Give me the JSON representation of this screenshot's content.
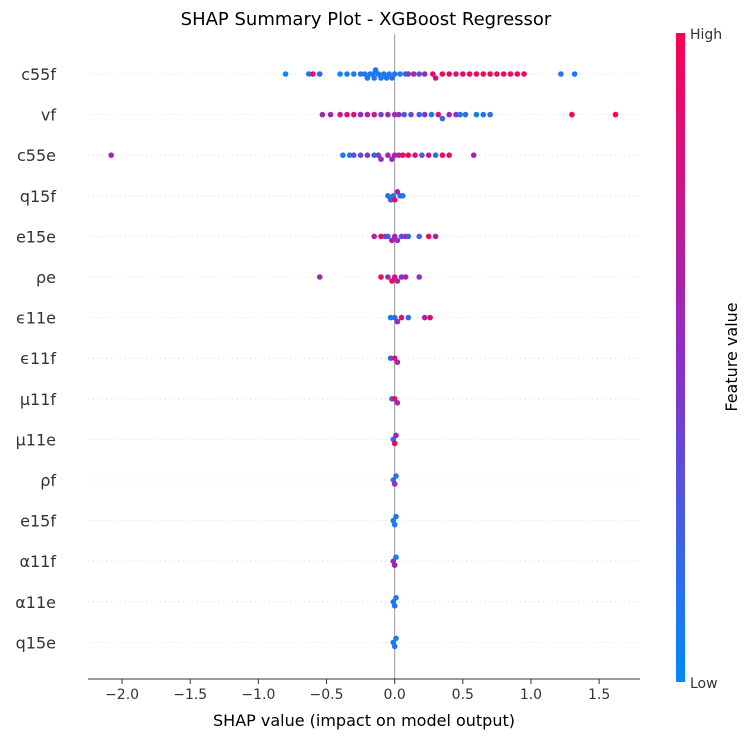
{
  "chart_data": {
    "type": "scatter",
    "title": "SHAP Summary Plot - XGBoost Regressor",
    "xlabel": "SHAP value (impact on model output)",
    "ylabel": "",
    "xlim": [
      -2.25,
      1.8
    ],
    "xticks": [
      -2.0,
      -1.5,
      -1.0,
      -0.5,
      0.0,
      0.5,
      1.0,
      1.5
    ],
    "xtick_labels": [
      "−2.0",
      "−1.5",
      "−1.0",
      "−0.5",
      "0.0",
      "0.5",
      "1.0",
      "1.5"
    ],
    "features": [
      "c55f",
      "vf",
      "c55e",
      "q15f",
      "e15e",
      "ρe",
      "ϵ11e",
      "ϵ11f",
      "μ11f",
      "μ11e",
      "ρf",
      "e15f",
      "α11f",
      "α11e",
      "q15e"
    ],
    "colorbar": {
      "label": "Feature value",
      "high": "High",
      "low": "Low"
    },
    "colors": {
      "low": "#008afb",
      "mid": "#8d2ec5",
      "high": "#ff0052",
      "zero_line": "#999999",
      "grid": "#dddddd"
    },
    "series": [
      {
        "feature": "c55f",
        "points": [
          [
            -0.8,
            0.0
          ],
          [
            -0.63,
            0.1
          ],
          [
            -0.6,
            0.9
          ],
          [
            -0.55,
            0.2
          ],
          [
            -0.4,
            0.0
          ],
          [
            -0.35,
            0.1
          ],
          [
            -0.3,
            0.1
          ],
          [
            -0.25,
            0.15
          ],
          [
            -0.22,
            0.1
          ],
          [
            -0.2,
            0.1
          ],
          [
            -0.18,
            0.1
          ],
          [
            -0.16,
            0.1
          ],
          [
            -0.15,
            0.1
          ],
          [
            -0.14,
            0.1
          ],
          [
            -0.12,
            0.1
          ],
          [
            -0.1,
            0.1
          ],
          [
            -0.08,
            0.1
          ],
          [
            -0.06,
            0.1
          ],
          [
            -0.04,
            0.1
          ],
          [
            -0.02,
            0.15
          ],
          [
            0.0,
            0.1
          ],
          [
            0.04,
            0.1
          ],
          [
            0.08,
            0.2
          ],
          [
            0.1,
            0.4
          ],
          [
            0.14,
            0.7
          ],
          [
            0.18,
            0.3
          ],
          [
            0.22,
            0.5
          ],
          [
            0.28,
            0.9
          ],
          [
            0.3,
            0.8
          ],
          [
            0.35,
            0.95
          ],
          [
            0.4,
            0.9
          ],
          [
            0.45,
            0.85
          ],
          [
            0.5,
            0.9
          ],
          [
            0.55,
            1.0
          ],
          [
            0.6,
            0.9
          ],
          [
            0.65,
            0.95
          ],
          [
            0.7,
            1.0
          ],
          [
            0.75,
            0.9
          ],
          [
            0.8,
            0.95
          ],
          [
            0.85,
            0.9
          ],
          [
            0.9,
            1.0
          ],
          [
            0.95,
            0.9
          ],
          [
            1.22,
            0.1
          ],
          [
            1.32,
            0.1
          ]
        ]
      },
      {
        "feature": "vf",
        "points": [
          [
            -0.53,
            0.6
          ],
          [
            -0.47,
            0.6
          ],
          [
            -0.4,
            0.7
          ],
          [
            -0.35,
            0.85
          ],
          [
            -0.3,
            0.8
          ],
          [
            -0.25,
            0.55
          ],
          [
            -0.2,
            0.65
          ],
          [
            -0.15,
            0.75
          ],
          [
            -0.1,
            0.4
          ],
          [
            -0.05,
            0.55
          ],
          [
            0.0,
            0.6
          ],
          [
            0.03,
            0.5
          ],
          [
            0.07,
            0.3
          ],
          [
            0.12,
            0.35
          ],
          [
            0.18,
            0.2
          ],
          [
            0.22,
            0.45
          ],
          [
            0.27,
            0.1
          ],
          [
            0.32,
            0.85
          ],
          [
            0.35,
            0.2
          ],
          [
            0.4,
            0.6
          ],
          [
            0.45,
            0.5
          ],
          [
            0.48,
            0.1
          ],
          [
            0.52,
            0.15
          ],
          [
            0.6,
            0.1
          ],
          [
            0.65,
            0.1
          ],
          [
            0.7,
            0.15
          ],
          [
            1.3,
            1.0
          ],
          [
            1.62,
            1.0
          ]
        ]
      },
      {
        "feature": "c55e",
        "points": [
          [
            -2.08,
            0.6
          ],
          [
            -0.38,
            0.1
          ],
          [
            -0.33,
            0.1
          ],
          [
            -0.3,
            0.3
          ],
          [
            -0.25,
            0.3
          ],
          [
            -0.2,
            0.5
          ],
          [
            -0.15,
            0.2
          ],
          [
            -0.12,
            0.4
          ],
          [
            -0.1,
            0.5
          ],
          [
            -0.05,
            0.6
          ],
          [
            -0.02,
            0.5
          ],
          [
            0.0,
            0.7
          ],
          [
            0.03,
            0.6
          ],
          [
            0.06,
            0.9
          ],
          [
            0.1,
            0.95
          ],
          [
            0.15,
            0.8
          ],
          [
            0.2,
            0.3
          ],
          [
            0.25,
            0.75
          ],
          [
            0.3,
            0.1
          ],
          [
            0.35,
            0.95
          ],
          [
            0.4,
            0.9
          ],
          [
            0.58,
            0.6
          ]
        ]
      },
      {
        "feature": "q15f",
        "points": [
          [
            -0.05,
            0.1
          ],
          [
            -0.03,
            0.2
          ],
          [
            -0.01,
            0.1
          ],
          [
            0.0,
            0.9
          ],
          [
            0.02,
            0.6
          ],
          [
            0.04,
            0.2
          ],
          [
            0.06,
            0.1
          ]
        ]
      },
      {
        "feature": "e15e",
        "points": [
          [
            -0.15,
            0.6
          ],
          [
            -0.1,
            0.9
          ],
          [
            -0.07,
            0.4
          ],
          [
            -0.05,
            0.2
          ],
          [
            -0.02,
            0.7
          ],
          [
            0.0,
            0.6
          ],
          [
            0.02,
            0.5
          ],
          [
            0.05,
            0.3
          ],
          [
            0.08,
            0.7
          ],
          [
            0.1,
            0.2
          ],
          [
            0.18,
            0.2
          ],
          [
            0.25,
            0.9
          ],
          [
            0.3,
            0.6
          ]
        ]
      },
      {
        "feature": "ρe",
        "points": [
          [
            -0.55,
            0.6
          ],
          [
            -0.1,
            0.95
          ],
          [
            -0.05,
            0.6
          ],
          [
            -0.02,
            0.9
          ],
          [
            0.0,
            0.8
          ],
          [
            0.02,
            0.6
          ],
          [
            0.05,
            0.5
          ],
          [
            0.08,
            0.7
          ],
          [
            0.18,
            0.5
          ]
        ]
      },
      {
        "feature": "ϵ11e",
        "points": [
          [
            -0.03,
            0.1
          ],
          [
            0.0,
            0.2
          ],
          [
            0.02,
            0.5
          ],
          [
            0.05,
            0.9
          ],
          [
            0.1,
            0.2
          ],
          [
            0.22,
            0.6
          ],
          [
            0.26,
            0.9
          ]
        ]
      },
      {
        "feature": "ϵ11f",
        "points": [
          [
            -0.03,
            0.2
          ],
          [
            0.0,
            0.9
          ],
          [
            0.02,
            0.6
          ]
        ]
      },
      {
        "feature": "μ11f",
        "points": [
          [
            -0.02,
            0.2
          ],
          [
            0.0,
            0.9
          ],
          [
            0.02,
            0.6
          ]
        ]
      },
      {
        "feature": "μ11e",
        "points": [
          [
            -0.01,
            0.2
          ],
          [
            0.0,
            0.9
          ],
          [
            0.01,
            0.5
          ]
        ]
      },
      {
        "feature": "ρf",
        "points": [
          [
            -0.01,
            0.2
          ],
          [
            0.0,
            0.6
          ],
          [
            0.01,
            0.1
          ]
        ]
      },
      {
        "feature": "e15f",
        "points": [
          [
            -0.01,
            0.1
          ],
          [
            0.0,
            0.1
          ],
          [
            0.01,
            0.1
          ]
        ]
      },
      {
        "feature": "α11f",
        "points": [
          [
            -0.01,
            0.5
          ],
          [
            0.0,
            0.6
          ],
          [
            0.01,
            0.1
          ]
        ]
      },
      {
        "feature": "α11e",
        "points": [
          [
            -0.01,
            0.1
          ],
          [
            0.0,
            0.1
          ],
          [
            0.01,
            0.1
          ]
        ]
      },
      {
        "feature": "q15e",
        "points": [
          [
            -0.01,
            0.1
          ],
          [
            0.0,
            0.1
          ],
          [
            0.01,
            0.1
          ]
        ]
      }
    ]
  }
}
